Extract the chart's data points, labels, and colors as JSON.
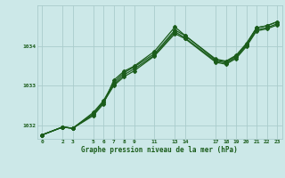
{
  "title": "Graphe pression niveau de la mer (hPa)",
  "bg_color": "#cce8e8",
  "grid_color": "#aacccc",
  "line_color": "#1a5c1a",
  "xlim": [
    -0.5,
    23.5
  ],
  "ylim": [
    1031.65,
    1035.05
  ],
  "xticks": [
    0,
    2,
    3,
    5,
    6,
    7,
    8,
    9,
    11,
    13,
    14,
    17,
    18,
    19,
    20,
    21,
    22,
    23
  ],
  "yticks": [
    1032,
    1033,
    1034
  ],
  "line1_x": [
    0,
    2,
    3,
    5,
    6,
    7,
    8,
    9,
    11,
    13,
    14,
    17,
    18,
    19,
    20,
    21,
    22,
    23
  ],
  "line1_y": [
    1031.75,
    1031.95,
    1031.92,
    1032.32,
    1032.62,
    1033.08,
    1033.33,
    1033.48,
    1033.82,
    1034.42,
    1034.28,
    1033.68,
    1033.63,
    1033.78,
    1034.08,
    1034.48,
    1034.53,
    1034.63
  ],
  "line2_x": [
    0,
    2,
    3,
    5,
    6,
    7,
    8,
    9,
    11,
    13,
    14,
    17,
    18,
    19,
    20,
    21,
    22,
    23
  ],
  "line2_y": [
    1031.75,
    1031.95,
    1031.92,
    1032.28,
    1032.58,
    1033.03,
    1033.28,
    1033.43,
    1033.78,
    1034.38,
    1034.22,
    1033.63,
    1033.58,
    1033.73,
    1034.03,
    1034.43,
    1034.48,
    1034.58
  ],
  "line3_x": [
    0,
    2,
    3,
    5,
    6,
    7,
    8,
    9,
    11,
    13,
    14,
    17,
    18,
    19,
    20,
    21,
    22,
    23
  ],
  "line3_y": [
    1031.75,
    1031.95,
    1031.92,
    1032.24,
    1032.54,
    1033.14,
    1033.37,
    1033.5,
    1033.88,
    1034.5,
    1034.28,
    1033.66,
    1033.61,
    1033.76,
    1034.06,
    1034.48,
    1034.53,
    1034.63
  ],
  "line4_x": [
    0,
    2,
    3,
    5,
    6,
    7,
    8,
    9,
    11,
    13,
    14,
    17,
    18,
    19,
    20,
    21,
    22,
    23
  ],
  "line4_y": [
    1031.75,
    1031.95,
    1031.92,
    1032.28,
    1032.58,
    1033.0,
    1033.23,
    1033.38,
    1033.76,
    1034.33,
    1034.2,
    1033.6,
    1033.55,
    1033.7,
    1034.0,
    1034.4,
    1034.45,
    1034.55
  ]
}
